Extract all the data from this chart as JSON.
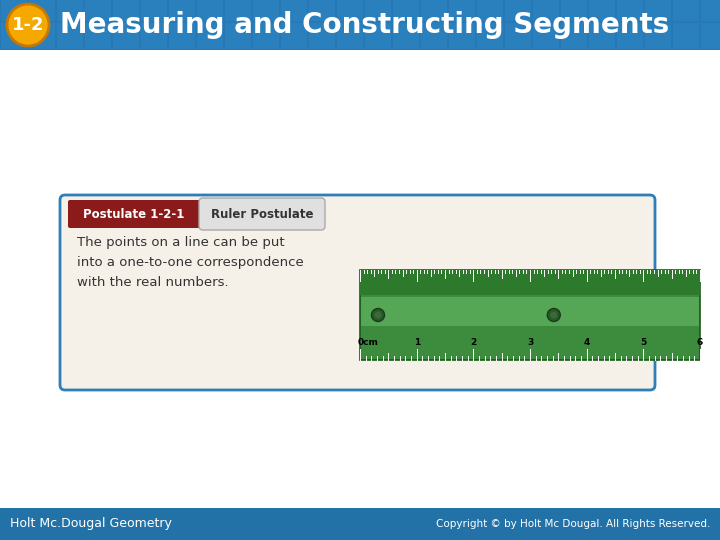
{
  "title": "Measuring and Constructing Segments",
  "title_number": "1-2",
  "header_bg": "#2c7bb6",
  "footer_text_left": "Holt Mc.Dougal Geometry",
  "footer_text_right": "Copyright © by Holt Mc Dougal. All Rights Reserved.",
  "postulate_label": "Postulate 1-2-1",
  "postulate_name": "Ruler Postulate",
  "postulate_text": "The points on a line can be put\ninto a one-to-one correspondence\nwith the real numbers.",
  "postulate_label_bg": "#8b1a1a",
  "card_bg": "#f5f0e8",
  "card_border": "#2e7eb8",
  "main_bg": "#ffffff",
  "footer_bg": "#2272a8",
  "badge_color": "#f5a800",
  "ruler_numbers": [
    "0cm",
    "1",
    "2",
    "3",
    "4",
    "5",
    "6"
  ]
}
